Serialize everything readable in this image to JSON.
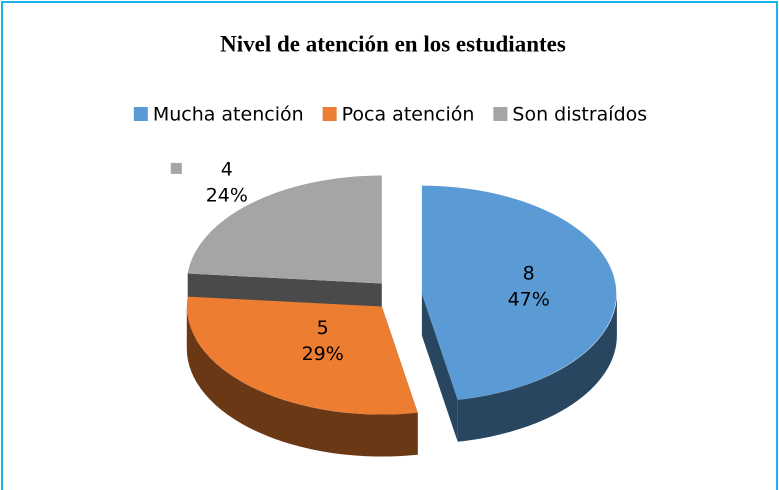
{
  "chart_data": {
    "type": "pie",
    "title": "Nivel de atención en los estudiantes",
    "categories": [
      "Mucha atención",
      "Poca atención",
      "Son distraídos"
    ],
    "values": [
      8,
      5,
      4
    ],
    "percentages": [
      47,
      29,
      24
    ],
    "value_labels": [
      "47%",
      "29%",
      "24%"
    ],
    "colors": [
      "#5b9bd5",
      "#ed7d31",
      "#a5a5a5"
    ],
    "legend": "top"
  }
}
